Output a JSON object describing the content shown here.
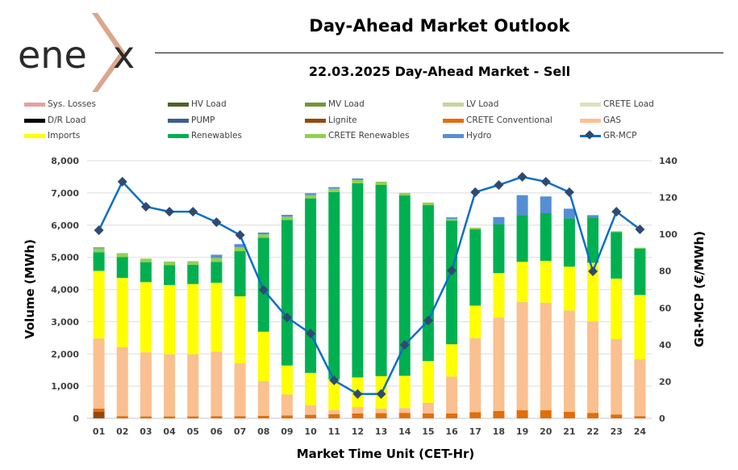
{
  "logo": {
    "text": "enex"
  },
  "header": {
    "title": "Day-Ahead Market Outlook",
    "subtitle": "22.03.2025  Day-Ahead Market - Sell"
  },
  "legend": [
    {
      "label": "Sys. Losses",
      "color": "#e6a0a0",
      "kind": "bar"
    },
    {
      "label": "HV Load",
      "color": "#4f6228",
      "kind": "bar"
    },
    {
      "label": "MV Load",
      "color": "#77933c",
      "kind": "bar"
    },
    {
      "label": "LV Load",
      "color": "#c3d69b",
      "kind": "bar"
    },
    {
      "label": "CRETE Load",
      "color": "#d8e4bc",
      "kind": "bar"
    },
    {
      "label": "D/R Load",
      "color": "#000000",
      "kind": "bar"
    },
    {
      "label": "PUMP",
      "color": "#376092",
      "kind": "bar"
    },
    {
      "label": "Lignite",
      "color": "#974706",
      "kind": "bar"
    },
    {
      "label": "CRETE Conventional",
      "color": "#e46c0a",
      "kind": "bar"
    },
    {
      "label": "GAS",
      "color": "#fac090",
      "kind": "bar"
    },
    {
      "label": "Imports",
      "color": "#ffff00",
      "kind": "bar"
    },
    {
      "label": "Renewables",
      "color": "#00b050",
      "kind": "bar"
    },
    {
      "label": "CRETE Renewables",
      "color": "#92d050",
      "kind": "bar"
    },
    {
      "label": "Hydro",
      "color": "#558ed5",
      "kind": "bar"
    },
    {
      "label": "GR-MCP",
      "color": "#0a6fc2",
      "kind": "line"
    }
  ],
  "chart_data": {
    "type": "bar",
    "stacked": true,
    "title": "Day-Ahead Market Outlook",
    "subtitle": "22.03.2025  Day-Ahead Market - Sell",
    "xlabel": "Market Time Unit (CET-Hr)",
    "ylabel": "Volume (MWh)",
    "y2label": "GR-MCP (€/MWh)",
    "ylim": [
      0,
      8000
    ],
    "y2lim": [
      0,
      140
    ],
    "yticks": [
      "0",
      "1,000",
      "2,000",
      "3,000",
      "4,000",
      "5,000",
      "6,000",
      "7,000",
      "8,000"
    ],
    "y2ticks": [
      "0",
      "20",
      "40",
      "60",
      "80",
      "100",
      "120",
      "140"
    ],
    "grid": true,
    "legend_position": "top",
    "categories": [
      "01",
      "02",
      "03",
      "04",
      "05",
      "06",
      "07",
      "08",
      "09",
      "10",
      "11",
      "12",
      "13",
      "14",
      "15",
      "16",
      "17",
      "18",
      "19",
      "20",
      "21",
      "22",
      "23",
      "24"
    ],
    "series": [
      {
        "name": "Lignite",
        "color": "#974706",
        "values": [
          200,
          0,
          0,
          0,
          0,
          0,
          0,
          0,
          0,
          0,
          0,
          0,
          0,
          0,
          0,
          0,
          0,
          0,
          0,
          0,
          0,
          0,
          0,
          0
        ]
      },
      {
        "name": "CRETE Conventional",
        "color": "#e46c0a",
        "values": [
          100,
          70,
          60,
          60,
          60,
          70,
          70,
          80,
          90,
          110,
          130,
          150,
          160,
          170,
          150,
          150,
          190,
          230,
          250,
          250,
          200,
          170,
          120,
          70
        ]
      },
      {
        "name": "GAS",
        "color": "#fac090",
        "values": [
          2180,
          2140,
          1990,
          1930,
          1930,
          2000,
          1640,
          1080,
          650,
          300,
          130,
          200,
          140,
          150,
          330,
          1150,
          2300,
          2900,
          3360,
          3340,
          3150,
          2840,
          2340,
          1760
        ]
      },
      {
        "name": "Imports",
        "color": "#ffff00",
        "values": [
          2100,
          2150,
          2180,
          2150,
          2180,
          2140,
          2080,
          1530,
          900,
          1000,
          950,
          920,
          1010,
          1000,
          1300,
          1000,
          1010,
          1380,
          1250,
          1300,
          1360,
          1820,
          1880,
          2000
        ]
      },
      {
        "name": "Renewables",
        "color": "#00b050",
        "values": [
          580,
          650,
          620,
          620,
          600,
          650,
          1400,
          2920,
          4520,
          5420,
          5820,
          6030,
          5940,
          5600,
          4840,
          3840,
          2370,
          1520,
          1450,
          1480,
          1500,
          1400,
          1440,
          1440
        ]
      },
      {
        "name": "CRETE Renewables",
        "color": "#92d050",
        "values": [
          120,
          120,
          110,
          110,
          110,
          120,
          120,
          100,
          100,
          100,
          100,
          100,
          100,
          80,
          80,
          50,
          50,
          0,
          0,
          0,
          0,
          0,
          30,
          30
        ]
      },
      {
        "name": "Hydro",
        "color": "#558ed5",
        "values": [
          30,
          0,
          0,
          0,
          0,
          100,
          100,
          60,
          60,
          60,
          50,
          50,
          0,
          0,
          0,
          50,
          0,
          220,
          620,
          520,
          300,
          80,
          0,
          0
        ]
      }
    ],
    "line_series": {
      "name": "GR-MCP",
      "axis": "right",
      "color": "#0a6fc2",
      "marker_color": "#2d4a73",
      "values": [
        102.2,
        128.6,
        115.0,
        112.3,
        112.3,
        106.6,
        99.6,
        69.8,
        54.8,
        46.1,
        20.6,
        13.2,
        13.2,
        39.9,
        53.1,
        80.3,
        122.9,
        126.8,
        131.2,
        128.6,
        122.9,
        79.9,
        112.3,
        102.7
      ]
    }
  }
}
